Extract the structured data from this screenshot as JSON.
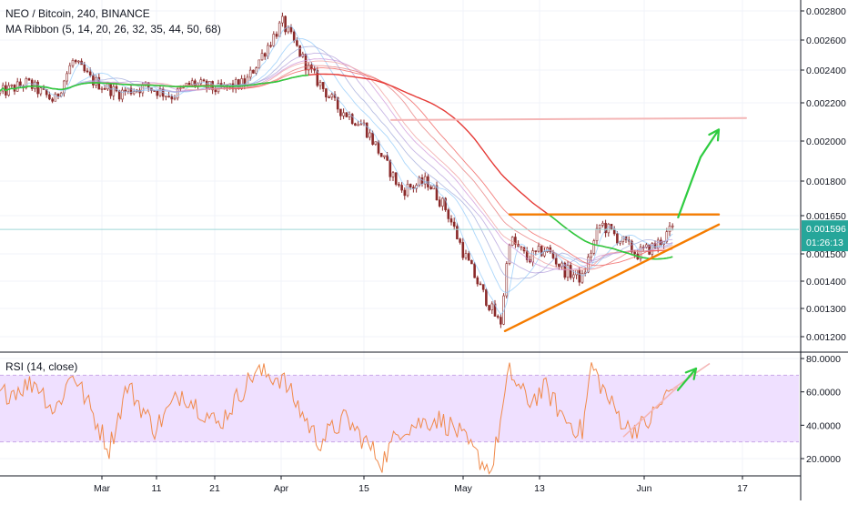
{
  "legend": {
    "symbol_line": "NEO / Bitcoin, 240, BINANCE",
    "indicator_line": "MA Ribbon (5, 14, 20, 26, 32, 35, 44, 50, 68)",
    "rsi_line": "RSI (14, close)"
  },
  "price_badge": {
    "value": "0.001596",
    "countdown": "01:26:13"
  },
  "colors": {
    "candle": "#8a2a2a",
    "ribbon_fast": "#2196f3",
    "ribbon_slow": "#e53935",
    "ribbon_green": "#2ecc40",
    "trendline": "#f57c00",
    "target_line": "#f4b6b6",
    "arrow": "#2ecc40",
    "rsi_line": "#f08a4b",
    "rsi_band": "#efe0ff",
    "price_line": "#9fd8d8",
    "badge_bg": "#26a69a"
  },
  "chart_data": [
    {
      "type": "candlestick",
      "title": "",
      "x_ticks": [
        "Mar",
        "11",
        "21",
        "Apr",
        "15",
        "May",
        "13",
        "Jun",
        "17"
      ],
      "y_ticks": [
        "0.001200",
        "0.001300",
        "0.001400",
        "0.001500",
        "0.001650",
        "0.001800",
        "0.002000",
        "0.002200",
        "0.002400",
        "0.002600",
        "0.002800"
      ],
      "ylim": [
        0.00116,
        0.00286
      ],
      "current_price": 0.001596,
      "close_path": [
        {
          "t": 0,
          "v": 0.00226
        },
        {
          "t": 3,
          "v": 0.00232
        },
        {
          "t": 6,
          "v": 0.00221
        },
        {
          "t": 8,
          "v": 0.00246
        },
        {
          "t": 10,
          "v": 0.00234
        },
        {
          "t": 13,
          "v": 0.00226
        },
        {
          "t": 16,
          "v": 0.0023
        },
        {
          "t": 19,
          "v": 0.00224
        },
        {
          "t": 21,
          "v": 0.00232
        },
        {
          "t": 24,
          "v": 0.00228
        },
        {
          "t": 27,
          "v": 0.00232
        },
        {
          "t": 29,
          "v": 0.00252
        },
        {
          "t": 31,
          "v": 0.00272
        },
        {
          "t": 34,
          "v": 0.0024
        },
        {
          "t": 37,
          "v": 0.00218
        },
        {
          "t": 40,
          "v": 0.00208
        },
        {
          "t": 42,
          "v": 0.00192
        },
        {
          "t": 44,
          "v": 0.00176
        },
        {
          "t": 47,
          "v": 0.0018
        },
        {
          "t": 49,
          "v": 0.00168
        },
        {
          "t": 51,
          "v": 0.0015
        },
        {
          "t": 53,
          "v": 0.00136
        },
        {
          "t": 55,
          "v": 0.00124
        },
        {
          "t": 56,
          "v": 0.00156
        },
        {
          "t": 58,
          "v": 0.00148
        },
        {
          "t": 60,
          "v": 0.00152
        },
        {
          "t": 62,
          "v": 0.00144
        },
        {
          "t": 64,
          "v": 0.00141
        },
        {
          "t": 66,
          "v": 0.00162
        },
        {
          "t": 68,
          "v": 0.00156
        },
        {
          "t": 70,
          "v": 0.0015
        },
        {
          "t": 72,
          "v": 0.00153
        },
        {
          "t": 74,
          "v": 0.0016
        }
      ],
      "annotations": {
        "resistance_line": [
          {
            "t": 56,
            "v": 0.001655
          },
          {
            "t": 79,
            "v": 0.001655
          }
        ],
        "support_line": [
          {
            "t": 55.5,
            "v": 0.00122
          },
          {
            "t": 79,
            "v": 0.001615
          }
        ],
        "target_line": [
          {
            "t": 43,
            "v": 0.00211
          },
          {
            "t": 82,
            "v": 0.00212
          }
        ],
        "arrow_1": [
          {
            "t": 74.5,
            "v": 0.00164
          },
          {
            "t": 76,
            "v": 0.0018
          }
        ],
        "arrow_2": [
          {
            "t": 77,
            "v": 0.00192
          },
          {
            "t": 79,
            "v": 0.00206
          }
        ]
      }
    },
    {
      "type": "line",
      "title": "RSI (14, close)",
      "y_ticks": [
        "20.0000",
        "40.0000",
        "60.0000",
        "80.0000"
      ],
      "ylim": [
        10,
        82
      ],
      "band": [
        30,
        70
      ],
      "path": [
        {
          "t": 0,
          "v": 58
        },
        {
          "t": 4,
          "v": 66
        },
        {
          "t": 6,
          "v": 48
        },
        {
          "t": 8,
          "v": 72
        },
        {
          "t": 12,
          "v": 26
        },
        {
          "t": 14,
          "v": 64
        },
        {
          "t": 17,
          "v": 38
        },
        {
          "t": 20,
          "v": 60
        },
        {
          "t": 24,
          "v": 40
        },
        {
          "t": 28,
          "v": 72
        },
        {
          "t": 31,
          "v": 68
        },
        {
          "t": 35,
          "v": 30
        },
        {
          "t": 38,
          "v": 44
        },
        {
          "t": 42,
          "v": 18
        },
        {
          "t": 44,
          "v": 38
        },
        {
          "t": 48,
          "v": 44
        },
        {
          "t": 50,
          "v": 38
        },
        {
          "t": 52,
          "v": 24
        },
        {
          "t": 54,
          "v": 12
        },
        {
          "t": 56,
          "v": 72
        },
        {
          "t": 58,
          "v": 54
        },
        {
          "t": 60,
          "v": 62
        },
        {
          "t": 62,
          "v": 44
        },
        {
          "t": 64,
          "v": 36
        },
        {
          "t": 65,
          "v": 76
        },
        {
          "t": 67,
          "v": 54
        },
        {
          "t": 69,
          "v": 38
        },
        {
          "t": 71,
          "v": 40
        },
        {
          "t": 73,
          "v": 56
        },
        {
          "t": 74,
          "v": 62
        }
      ],
      "annotations": {
        "support_line": [
          {
            "t": 68.5,
            "v": 33
          },
          {
            "t": 74.5,
            "v": 63
          }
        ],
        "pink_line": [
          {
            "t": 74,
            "v": 62
          },
          {
            "t": 78,
            "v": 77
          }
        ],
        "arrow": [
          {
            "t": 74.5,
            "v": 61
          },
          {
            "t": 76.5,
            "v": 74
          }
        ]
      }
    }
  ]
}
